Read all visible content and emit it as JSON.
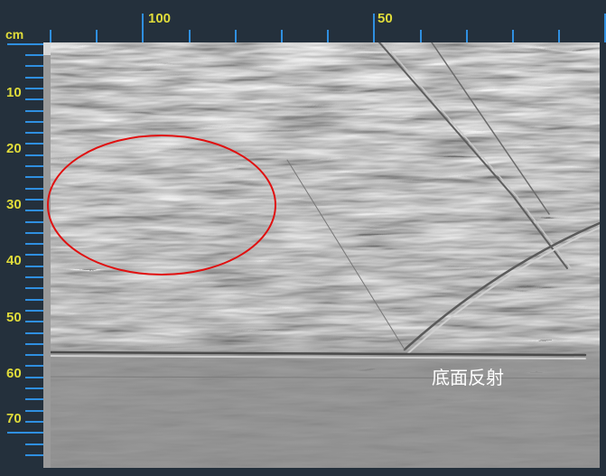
{
  "unit_label": "cm",
  "horizontal_axis": {
    "labels": [
      "100",
      "50"
    ]
  },
  "vertical_axis": {
    "labels": [
      "10",
      "20",
      "30",
      "40",
      "50",
      "60",
      "70"
    ]
  },
  "annotation": {
    "caption": "底面反射",
    "marker": "ellipse",
    "marker_color": "#e01010"
  },
  "colors": {
    "background": "#24303c",
    "ticks": "#2f8fe0",
    "labels": "#e0dc3a",
    "scan_base": "#8c8c8c"
  }
}
